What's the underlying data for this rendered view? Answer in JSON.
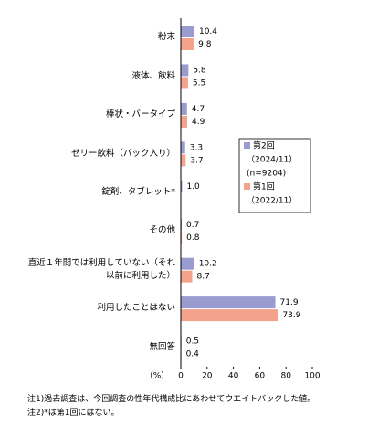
{
  "chart_data": {
    "type": "hbar",
    "categories": [
      "粉末",
      "液体、飲料",
      "棒状・バータイプ",
      "ゼリー飲料（パック入り）",
      "錠剤、タブレット*",
      "その他",
      "直近１年間では利用していない（それ以前に利用した）",
      "利用したことはない",
      "無回答"
    ],
    "series": [
      {
        "name": "第2回",
        "legend_notes": [
          "（2024/11）",
          "(n=9204)"
        ],
        "color": "#9a9cd0",
        "values": [
          10.4,
          5.8,
          4.7,
          3.3,
          1.0,
          0.7,
          10.2,
          71.9,
          0.5
        ],
        "value_labels": [
          "10.4",
          "5.8",
          "4.7",
          "3.3",
          "1.0",
          "0.7",
          "10.2",
          "71.9",
          "0.5"
        ]
      },
      {
        "name": "第1回",
        "legend_notes": [
          "（2022/11）"
        ],
        "color": "#f4a28c",
        "values": [
          9.8,
          5.5,
          4.9,
          3.7,
          null,
          0.8,
          8.7,
          73.9,
          0.4
        ],
        "value_labels": [
          "9.8",
          "5.5",
          "4.9",
          "3.7",
          null,
          "0.8",
          "8.7",
          "73.9",
          "0.4"
        ]
      }
    ],
    "xlim": [
      0,
      100
    ],
    "xticks": [
      0,
      20,
      40,
      60,
      80,
      100
    ],
    "x_label": "（%）",
    "grid": false,
    "notes": [
      "注1)過去調査は、今回調査の性年代構成比にあわせてウエイトバックした値。",
      "注2)*は第1回にはない。"
    ]
  }
}
